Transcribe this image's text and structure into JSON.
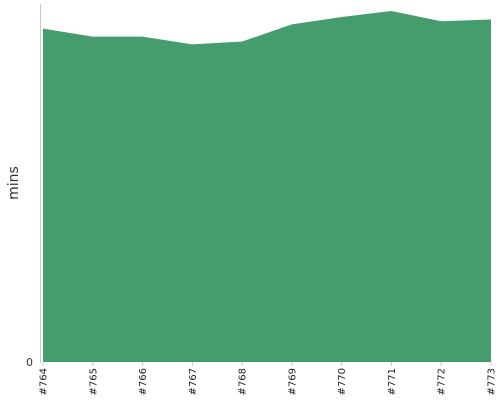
{
  "chart_data": {
    "type": "area",
    "title": "",
    "xlabel": "",
    "ylabel": "mins",
    "x": [
      "#764",
      "#765",
      "#766",
      "#767",
      "#768",
      "#769",
      "#770",
      "#771",
      "#772",
      "#773"
    ],
    "series": [
      {
        "values": [
          95,
          92.7,
          92.7,
          90.5,
          91.3,
          96.2,
          98.3,
          100,
          97.1,
          97.6
        ]
      }
    ],
    "ylim": [
      0,
      102
    ],
    "y_ticks": [
      "0"
    ],
    "grid": false,
    "legend": "none",
    "colors": {
      "area_fill": "#459c6c",
      "axis": "#c8c8c8"
    }
  }
}
